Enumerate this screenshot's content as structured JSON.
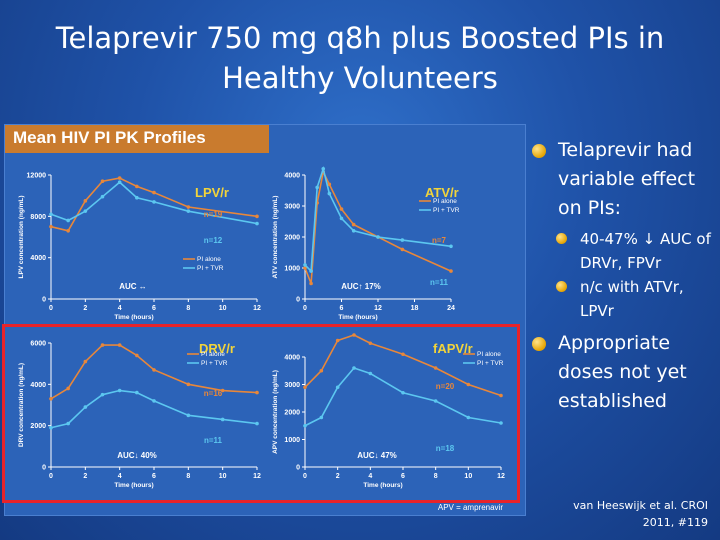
{
  "slide": {
    "title_line1": "Telaprevir 750 mg q8h plus Boosted PIs in",
    "title_line2": "Healthy Volunteers",
    "bullets": {
      "b1": "Telaprevir had variable effect on PIs:",
      "b1a": "40-47% ↓ AUC of DRVr, FPVr",
      "b1b": "n/c with ATVr, LPVr",
      "b2": "Appropriate doses not yet established"
    },
    "reference": "van Heeswijk et al. CROI 2011, #119"
  },
  "figure": {
    "title": "Mean HIV PI PK Profiles",
    "footnote": "APV = amprenavir",
    "colors": {
      "pi_alone": "#e8873a",
      "pi_tvr": "#5cc7f0",
      "label_yellow": "#f2d43a",
      "label_orange": "#e88a35"
    }
  },
  "chart_data": [
    {
      "type": "line",
      "panel_label": "LPV/r",
      "ylabel": "LPV concentration (ng/mL)",
      "xlabel": "Time (hours)",
      "x_ticks": [
        0,
        2,
        4,
        6,
        8,
        10,
        12
      ],
      "y_ticks": [
        0,
        4000,
        8000,
        12000
      ],
      "ylim": [
        0,
        12000
      ],
      "xlim": [
        0,
        12
      ],
      "legend": [
        "PI alone",
        "PI + TVR"
      ],
      "annotations": [
        "n=19",
        "n=12",
        "AUC ↔"
      ],
      "series": [
        {
          "name": "PI alone",
          "x": [
            0,
            1,
            2,
            3,
            4,
            5,
            6,
            8,
            12
          ],
          "y": [
            7000,
            6600,
            9500,
            11400,
            11700,
            10900,
            10300,
            8900,
            8000
          ]
        },
        {
          "name": "PI + TVR",
          "x": [
            0,
            1,
            2,
            3,
            4,
            5,
            6,
            8,
            12
          ],
          "y": [
            8200,
            7600,
            8500,
            9900,
            11300,
            9800,
            9400,
            8500,
            7300
          ]
        }
      ]
    },
    {
      "type": "line",
      "panel_label": "ATV/r",
      "ylabel": "ATV concentration (ng/mL)",
      "xlabel": "Time (hours)",
      "x_ticks": [
        0,
        6,
        12,
        18,
        24
      ],
      "y_ticks": [
        0,
        1000,
        2000,
        3000,
        4000
      ],
      "ylim": [
        0,
        4000
      ],
      "xlim": [
        0,
        24
      ],
      "legend": [
        "PI alone",
        "PI + TVR"
      ],
      "annotations": [
        "n=7",
        "n=11",
        "AUC↑ 17%"
      ],
      "series": [
        {
          "name": "PI alone",
          "x": [
            0,
            1,
            2,
            3,
            4,
            6,
            8,
            12,
            16,
            24
          ],
          "y": [
            1000,
            500,
            3100,
            4100,
            3700,
            2900,
            2400,
            2000,
            1600,
            900
          ]
        },
        {
          "name": "PI + TVR",
          "x": [
            0,
            1,
            2,
            3,
            4,
            6,
            8,
            12,
            16,
            24
          ],
          "y": [
            1100,
            900,
            3600,
            4200,
            3400,
            2600,
            2200,
            2000,
            1900,
            1700
          ]
        }
      ]
    },
    {
      "type": "line",
      "panel_label": "DRV/r",
      "ylabel": "DRV concentration (ng/mL)",
      "xlabel": "Time (hours)",
      "x_ticks": [
        0,
        2,
        4,
        6,
        8,
        10,
        12
      ],
      "y_ticks": [
        0,
        2000,
        4000,
        6000
      ],
      "ylim": [
        0,
        6000
      ],
      "xlim": [
        0,
        12
      ],
      "legend": [
        "PI alone",
        "PI + TVR"
      ],
      "annotations": [
        "n=16",
        "n=11",
        "AUC↓ 40%"
      ],
      "series": [
        {
          "name": "PI alone",
          "x": [
            0,
            1,
            2,
            3,
            4,
            5,
            6,
            8,
            10,
            12
          ],
          "y": [
            3300,
            3800,
            5100,
            5900,
            5900,
            5400,
            4700,
            4000,
            3700,
            3600
          ]
        },
        {
          "name": "PI + TVR",
          "x": [
            0,
            1,
            2,
            3,
            4,
            5,
            6,
            8,
            10,
            12
          ],
          "y": [
            1900,
            2100,
            2900,
            3500,
            3700,
            3600,
            3200,
            2500,
            2300,
            2100
          ]
        }
      ]
    },
    {
      "type": "line",
      "panel_label": "fAPV/r",
      "ylabel": "APV concentration (ng/mL)",
      "xlabel": "Time (hours)",
      "x_ticks": [
        0,
        2,
        4,
        6,
        8,
        10,
        12
      ],
      "y_ticks": [
        0,
        1000,
        2000,
        3000,
        4000
      ],
      "ylim": [
        0,
        4000
      ],
      "xlim": [
        0,
        12
      ],
      "legend": [
        "PI alone",
        "PI + TVR"
      ],
      "annotations": [
        "n=20",
        "n=18",
        "AUC↓ 47%"
      ],
      "series": [
        {
          "name": "PI alone",
          "x": [
            0,
            1,
            2,
            3,
            4,
            6,
            8,
            10,
            12
          ],
          "y": [
            2900,
            3500,
            4600,
            4800,
            4500,
            4100,
            3600,
            3000,
            2600
          ]
        },
        {
          "name": "PI + TVR",
          "x": [
            0,
            1,
            2,
            3,
            4,
            6,
            8,
            10,
            12
          ],
          "y": [
            1500,
            1800,
            2900,
            3600,
            3400,
            2700,
            2400,
            1800,
            1600
          ]
        }
      ]
    }
  ]
}
